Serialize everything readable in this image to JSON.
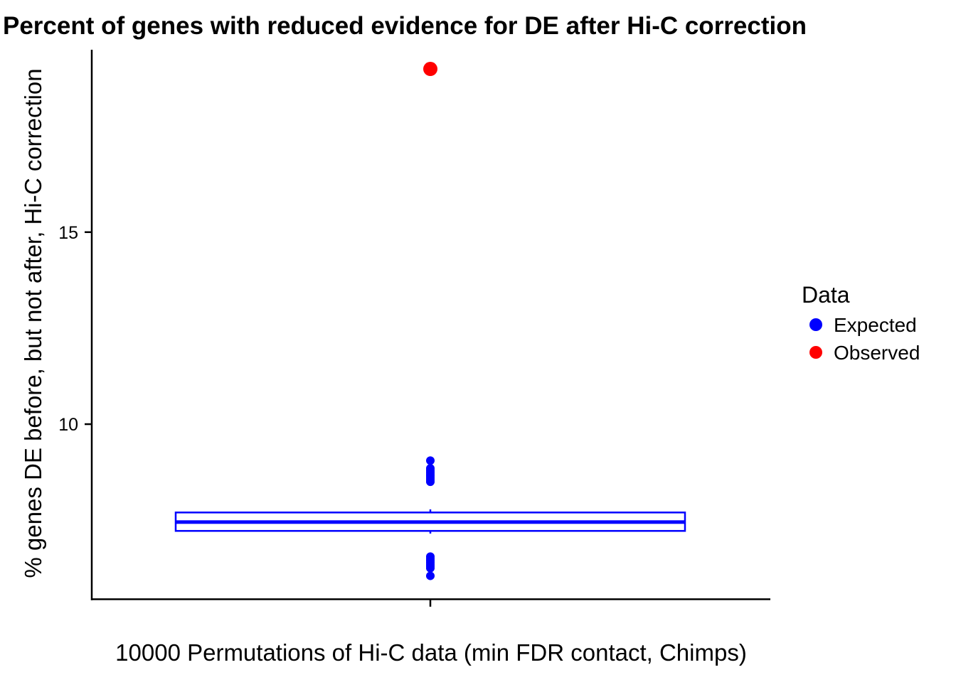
{
  "chart_data": {
    "type": "boxplot",
    "title": "Percent of genes with reduced evidence for DE after Hi-C correction",
    "xlabel": "10000 Permutations of Hi-C data (min FDR contact, Chimps)",
    "ylabel": "% genes DE before, but not after, Hi-C correction",
    "ylim": [
      5.45,
      19.75
    ],
    "yticks": [
      10,
      15
    ],
    "grid": false,
    "legend": {
      "title": "Data",
      "position": "right",
      "entries": [
        {
          "label": "Expected",
          "color": "#0000ff"
        },
        {
          "label": "Observed",
          "color": "#ff0000"
        }
      ]
    },
    "box": {
      "series": "Expected",
      "q1": 7.22,
      "median": 7.45,
      "q3": 7.7,
      "whisker_low": 7.15,
      "whisker_high": 7.78,
      "outliers": [
        9.05,
        8.85,
        8.8,
        8.75,
        8.7,
        8.65,
        8.6,
        8.55,
        8.5,
        6.55,
        6.5,
        6.45,
        6.4,
        6.35,
        6.3,
        6.25,
        6.05
      ]
    },
    "observed": {
      "series": "Observed",
      "value": 19.25
    },
    "colors": {
      "expected": "#0000ff",
      "observed": "#ff0000",
      "axis": "#000000"
    }
  }
}
